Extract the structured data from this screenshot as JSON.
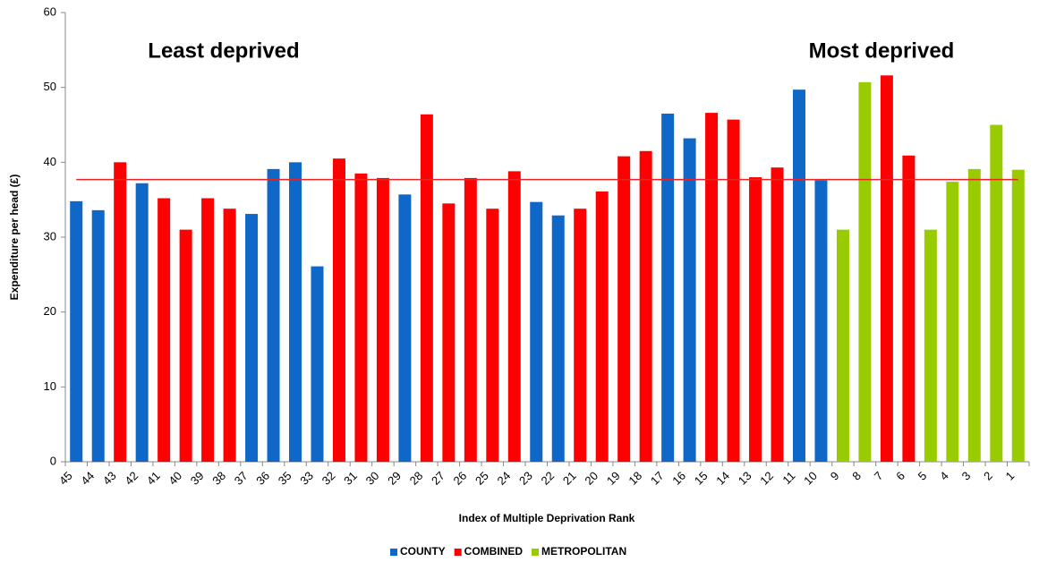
{
  "chart_data": {
    "type": "bar",
    "x_label": "Index of Multiple Deprivation Rank",
    "y_label": "Expenditure per head (£)",
    "annotations": [
      "Least deprived",
      "Most deprived"
    ],
    "categories": [
      "45",
      "44",
      "43",
      "42",
      "41",
      "40",
      "39",
      "38",
      "37",
      "36",
      "35",
      "33",
      "32",
      "31",
      "30",
      "29",
      "28",
      "27",
      "26",
      "25",
      "24",
      "23",
      "22",
      "21",
      "20",
      "19",
      "18",
      "17",
      "16",
      "15",
      "14",
      "13",
      "12",
      "11",
      "10",
      "9",
      "8",
      "7",
      "6",
      "5",
      "4",
      "3",
      "2",
      "1"
    ],
    "series": [
      {
        "name": "COUNTY",
        "color": "#0f67c8",
        "values": [
          34.8,
          33.6,
          null,
          37.2,
          null,
          null,
          null,
          null,
          33.1,
          39.1,
          40,
          26.1,
          null,
          null,
          null,
          35.7,
          null,
          null,
          null,
          null,
          null,
          34.7,
          32.9,
          null,
          null,
          null,
          null,
          46.5,
          43.2,
          null,
          null,
          null,
          null,
          49.7,
          37.6,
          null,
          null,
          null,
          null,
          null,
          null,
          null,
          null,
          null
        ]
      },
      {
        "name": "COMBINED",
        "color": "#ff0000",
        "values": [
          null,
          null,
          40,
          null,
          35.2,
          31,
          35.2,
          33.8,
          null,
          null,
          null,
          null,
          40.5,
          38.5,
          37.9,
          null,
          46.4,
          34.5,
          37.9,
          33.8,
          38.8,
          null,
          null,
          33.8,
          36.1,
          40.8,
          41.5,
          null,
          null,
          46.6,
          45.7,
          38,
          39.3,
          null,
          null,
          null,
          null,
          51.6,
          40.9,
          null,
          null,
          null,
          null,
          null
        ]
      },
      {
        "name": "METROPOLITAN",
        "color": "#99cc00",
        "values": [
          null,
          null,
          null,
          null,
          null,
          null,
          null,
          null,
          null,
          null,
          null,
          null,
          null,
          null,
          null,
          null,
          null,
          null,
          null,
          null,
          null,
          null,
          null,
          null,
          null,
          null,
          null,
          null,
          null,
          null,
          null,
          null,
          null,
          null,
          null,
          31,
          50.7,
          null,
          null,
          31,
          37.4,
          39.1,
          45,
          39
        ]
      }
    ],
    "average": 37.7,
    "average_color": "#ee2222",
    "ylim": [
      0,
      60
    ],
    "yticks": [
      0,
      10,
      20,
      30,
      40,
      50,
      60
    ]
  }
}
